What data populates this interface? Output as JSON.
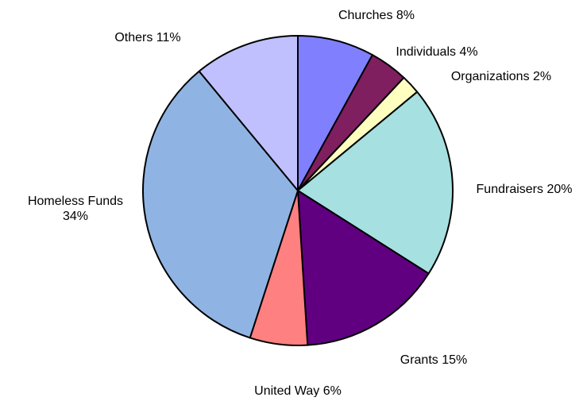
{
  "chart_data": {
    "type": "pie",
    "title": "",
    "start_angle": "12 o'clock",
    "direction": "clockwise",
    "slices": [
      {
        "label": "Churches",
        "value": 8,
        "display": "Churches 8%",
        "color": "#8080ff"
      },
      {
        "label": "Individuals",
        "value": 4,
        "display": "Individuals 4%",
        "color": "#7f1f5f"
      },
      {
        "label": "Organizations",
        "value": 2,
        "display": "Organizations 2%",
        "color": "#ffffc0"
      },
      {
        "label": "Fundraisers",
        "value": 20,
        "display": "Fundraisers 20%",
        "color": "#a6e0e0"
      },
      {
        "label": "Grants",
        "value": 15,
        "display": "Grants 15%",
        "color": "#600080"
      },
      {
        "label": "United Way",
        "value": 6,
        "display": "United Way 6%",
        "color": "#ff8080"
      },
      {
        "label": "Homeless Funds",
        "value": 34,
        "display": [
          "Homeless Funds",
          "34%"
        ],
        "color": "#8fb4e3"
      },
      {
        "label": "Others",
        "value": 11,
        "display": "Others 11%",
        "color": "#c0c0ff"
      }
    ]
  }
}
